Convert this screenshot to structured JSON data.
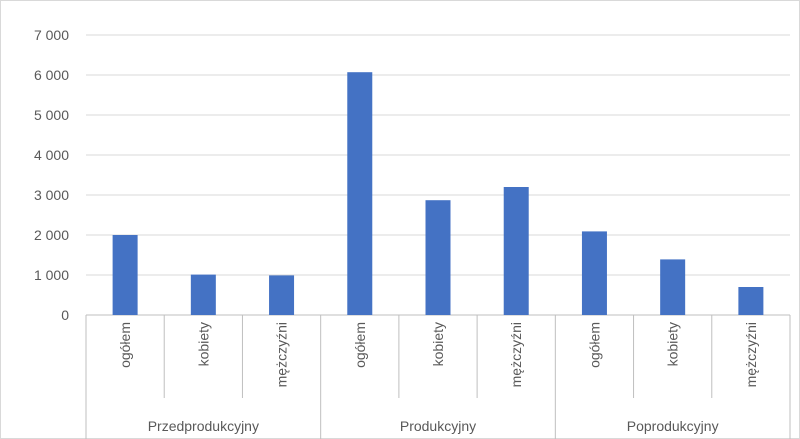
{
  "chart_data": {
    "type": "bar",
    "title": "",
    "xlabel": "",
    "ylabel": "",
    "ylim": [
      0,
      7000
    ],
    "y_ticks": [
      0,
      1000,
      2000,
      3000,
      4000,
      5000,
      6000,
      7000
    ],
    "y_tick_labels": [
      "0",
      "1 000",
      "2 000",
      "3 000",
      "4 000",
      "5 000",
      "6 000",
      "7 000"
    ],
    "grid": true,
    "legend": "none",
    "bar_color": "#4472c4",
    "groups": [
      {
        "label": "Przedprodukcyjny",
        "categories": [
          "ogółem",
          "kobiety",
          "mężczyźni"
        ],
        "values": [
          2000,
          1010,
          990
        ]
      },
      {
        "label": "Produkcyjny",
        "categories": [
          "ogółem",
          "kobiety",
          "mężczyźni"
        ],
        "values": [
          6070,
          2870,
          3200
        ]
      },
      {
        "label": "Poprodukcyjny",
        "categories": [
          "ogółem",
          "kobiety",
          "mężczyźni"
        ],
        "values": [
          2090,
          1390,
          700
        ]
      }
    ]
  }
}
